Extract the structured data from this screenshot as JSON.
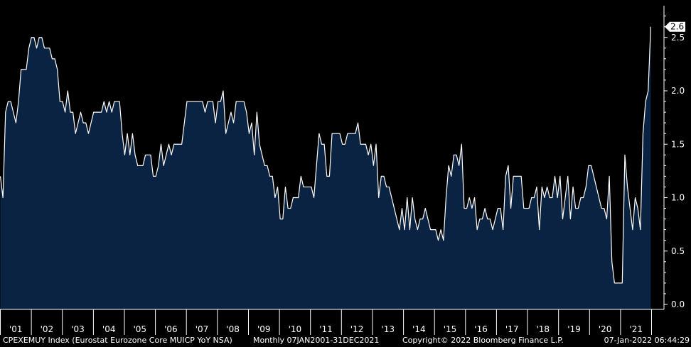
{
  "chart_data": {
    "type": "area",
    "title": "",
    "xlabel": "",
    "ylabel": "",
    "ylim": [
      0.0,
      2.8
    ],
    "yticks": [
      "0.0",
      "0.5",
      "1.0",
      "1.5",
      "2.0",
      "2.5"
    ],
    "xticks": [
      "'01",
      "'02",
      "'03",
      "'04",
      "'05",
      "'06",
      "'07",
      "'08",
      "'09",
      "'10",
      "'11",
      "'12",
      "'13",
      "'14",
      "'15",
      "'16",
      "'17",
      "'18",
      "'19",
      "'20",
      "'21"
    ],
    "start": "2001-01",
    "frequency": "Monthly",
    "last_value_label": "2.6",
    "grid": false,
    "fill_color": "#0b2342",
    "line_color": "#ffffff",
    "background": "#000000",
    "values": [
      1.2,
      1.0,
      1.8,
      1.9,
      1.9,
      1.8,
      1.7,
      1.9,
      2.2,
      2.2,
      2.2,
      2.4,
      2.5,
      2.5,
      2.4,
      2.5,
      2.5,
      2.4,
      2.4,
      2.4,
      2.3,
      2.3,
      2.2,
      1.9,
      1.9,
      1.8,
      2.0,
      1.8,
      1.8,
      1.6,
      1.7,
      1.8,
      1.7,
      1.7,
      1.6,
      1.7,
      1.8,
      1.8,
      1.8,
      1.8,
      1.9,
      1.8,
      1.9,
      1.8,
      1.9,
      1.9,
      1.9,
      1.6,
      1.4,
      1.6,
      1.4,
      1.6,
      1.4,
      1.3,
      1.3,
      1.3,
      1.4,
      1.4,
      1.4,
      1.2,
      1.2,
      1.3,
      1.5,
      1.3,
      1.4,
      1.5,
      1.4,
      1.5,
      1.5,
      1.5,
      1.5,
      1.7,
      1.9,
      1.9,
      1.9,
      1.9,
      1.9,
      1.9,
      1.9,
      1.8,
      1.9,
      1.9,
      1.9,
      1.7,
      1.9,
      1.9,
      2.0,
      1.6,
      1.7,
      1.8,
      1.7,
      1.9,
      1.9,
      1.9,
      1.9,
      1.8,
      1.6,
      1.7,
      1.4,
      1.8,
      1.5,
      1.4,
      1.3,
      1.3,
      1.2,
      1.2,
      1.0,
      1.1,
      0.8,
      0.8,
      1.1,
      0.9,
      0.9,
      1.0,
      1.0,
      1.0,
      1.2,
      1.1,
      1.1,
      1.1,
      1.1,
      1.0,
      1.3,
      1.6,
      1.5,
      1.5,
      1.2,
      1.2,
      1.6,
      1.6,
      1.6,
      1.6,
      1.5,
      1.5,
      1.6,
      1.6,
      1.6,
      1.6,
      1.7,
      1.5,
      1.5,
      1.5,
      1.4,
      1.5,
      1.3,
      1.5,
      1.0,
      1.2,
      1.2,
      1.1,
      1.1,
      1.0,
      0.9,
      0.8,
      0.7,
      0.9,
      0.7,
      1.0,
      0.7,
      1.0,
      0.8,
      0.7,
      0.8,
      0.8,
      0.9,
      0.8,
      0.7,
      0.7,
      0.7,
      0.6,
      0.7,
      0.6,
      1.0,
      1.3,
      1.2,
      1.4,
      1.4,
      1.3,
      1.5,
      0.9,
      0.9,
      1.0,
      0.9,
      1.0,
      0.7,
      0.8,
      0.8,
      0.9,
      0.8,
      0.8,
      0.7,
      0.8,
      0.9,
      0.9,
      0.7,
      1.2,
      1.3,
      0.9,
      1.2,
      1.2,
      1.2,
      1.2,
      0.9,
      0.9,
      0.9,
      1.0,
      1.0,
      1.1,
      0.7,
      1.1,
      1.0,
      1.1,
      1.0,
      1.0,
      1.2,
      1.0,
      1.2,
      0.8,
      1.0,
      1.2,
      0.8,
      1.1,
      0.9,
      0.9,
      1.0,
      1.0,
      1.1,
      1.3,
      1.3,
      1.2,
      1.1,
      1.0,
      0.9,
      0.9,
      0.8,
      1.2,
      0.4,
      0.2,
      0.2,
      0.2,
      0.2,
      1.4,
      1.1,
      0.9,
      0.7,
      1.0,
      0.9,
      0.7,
      1.6,
      1.9,
      2.0,
      2.6
    ]
  },
  "footer": {
    "index_text": "CPEXEMUY Index (Eurostat Eurozone Core MUICP YoY NSA)",
    "frequency_text": "Monthly 07JAN2001-31DEC2021",
    "copyright_text": "Copyright© 2022 Bloomberg Finance L.P.",
    "timestamp_text": "07-Jan-2022 06:44:29"
  }
}
